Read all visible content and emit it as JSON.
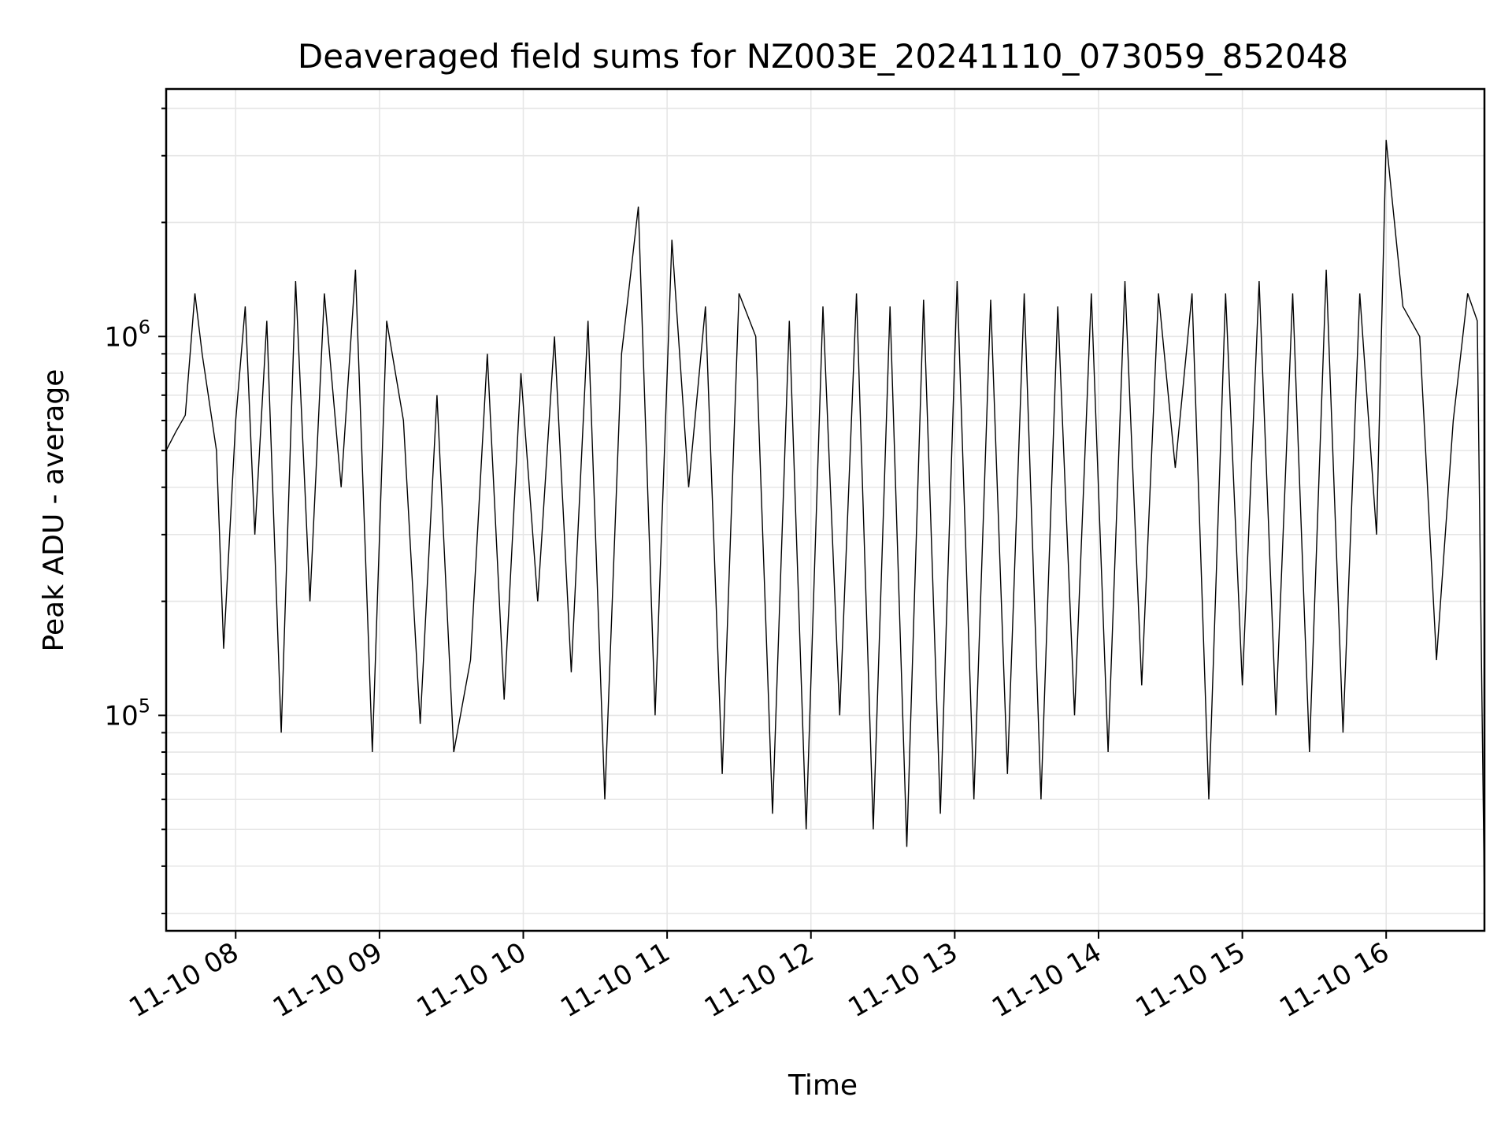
{
  "chart_data": {
    "type": "line",
    "title": "Deaveraged field sums for NZ003E_20241110_073059_852048",
    "xlabel": "Time",
    "ylabel": "Peak ADU - average",
    "x_axis": {
      "kind": "datetime",
      "range": [
        "2024-11-10 07:31",
        "2024-11-10 16:41"
      ],
      "ticks": [
        {
          "time": "2024-11-10 08:00",
          "label": "11-10 08"
        },
        {
          "time": "2024-11-10 09:00",
          "label": "11-10 09"
        },
        {
          "time": "2024-11-10 10:00",
          "label": "11-10 10"
        },
        {
          "time": "2024-11-10 11:00",
          "label": "11-10 11"
        },
        {
          "time": "2024-11-10 12:00",
          "label": "11-10 12"
        },
        {
          "time": "2024-11-10 13:00",
          "label": "11-10 13"
        },
        {
          "time": "2024-11-10 14:00",
          "label": "11-10 14"
        },
        {
          "time": "2024-11-10 15:00",
          "label": "11-10 15"
        },
        {
          "time": "2024-11-10 16:00",
          "label": "11-10 16"
        }
      ],
      "tick_label_rotation_deg": 30
    },
    "y_axis": {
      "scale": "log",
      "range": [
        27000,
        4500000
      ],
      "major_ticks": [
        {
          "value": 100000,
          "base": "10",
          "exponent": "5"
        },
        {
          "value": 1000000,
          "base": "10",
          "exponent": "6"
        }
      ]
    },
    "grid": true,
    "legend": "none",
    "line_color": "#000000",
    "grid_color": "#e6e6e6",
    "series": [
      {
        "x": [
          "2024-11-10 07:31",
          "2024-11-10 07:35",
          "2024-11-10 07:39",
          "2024-11-10 07:43",
          "2024-11-10 07:46",
          "2024-11-10 07:52",
          "2024-11-10 07:55",
          "2024-11-10 08:00",
          "2024-11-10 08:04",
          "2024-11-10 08:08",
          "2024-11-10 08:13",
          "2024-11-10 08:19",
          "2024-11-10 08:25",
          "2024-11-10 08:31",
          "2024-11-10 08:37",
          "2024-11-10 08:44",
          "2024-11-10 08:50",
          "2024-11-10 08:57",
          "2024-11-10 09:03",
          "2024-11-10 09:10",
          "2024-11-10 09:17",
          "2024-11-10 09:24",
          "2024-11-10 09:31",
          "2024-11-10 09:38",
          "2024-11-10 09:45",
          "2024-11-10 09:52",
          "2024-11-10 09:59",
          "2024-11-10 10:06",
          "2024-11-10 10:13",
          "2024-11-10 10:20",
          "2024-11-10 10:27",
          "2024-11-10 10:34",
          "2024-11-10 10:41",
          "2024-11-10 10:48",
          "2024-11-10 10:55",
          "2024-11-10 11:02",
          "2024-11-10 11:09",
          "2024-11-10 11:16",
          "2024-11-10 11:23",
          "2024-11-10 11:30",
          "2024-11-10 11:37",
          "2024-11-10 11:44",
          "2024-11-10 11:51",
          "2024-11-10 11:58",
          "2024-11-10 12:05",
          "2024-11-10 12:12",
          "2024-11-10 12:19",
          "2024-11-10 12:26",
          "2024-11-10 12:33",
          "2024-11-10 12:40",
          "2024-11-10 12:47",
          "2024-11-10 12:54",
          "2024-11-10 13:01",
          "2024-11-10 13:08",
          "2024-11-10 13:15",
          "2024-11-10 13:22",
          "2024-11-10 13:29",
          "2024-11-10 13:36",
          "2024-11-10 13:43",
          "2024-11-10 13:50",
          "2024-11-10 13:57",
          "2024-11-10 14:04",
          "2024-11-10 14:11",
          "2024-11-10 14:18",
          "2024-11-10 14:25",
          "2024-11-10 14:32",
          "2024-11-10 14:39",
          "2024-11-10 14:46",
          "2024-11-10 14:53",
          "2024-11-10 15:00",
          "2024-11-10 15:07",
          "2024-11-10 15:14",
          "2024-11-10 15:21",
          "2024-11-10 15:28",
          "2024-11-10 15:35",
          "2024-11-10 15:42",
          "2024-11-10 15:49",
          "2024-11-10 15:56",
          "2024-11-10 16:00",
          "2024-11-10 16:07",
          "2024-11-10 16:14",
          "2024-11-10 16:21",
          "2024-11-10 16:28",
          "2024-11-10 16:34",
          "2024-11-10 16:38",
          "2024-11-10 16:41"
        ],
        "y": [
          500000,
          560000,
          620000,
          1300000,
          900000,
          500000,
          150000,
          600000,
          1200000,
          300000,
          1100000,
          90000,
          1400000,
          200000,
          1300000,
          400000,
          1500000,
          80000,
          1100000,
          600000,
          95000,
          700000,
          80000,
          140000,
          900000,
          110000,
          800000,
          200000,
          1000000,
          130000,
          1100000,
          60000,
          900000,
          2200000,
          100000,
          1800000,
          400000,
          1200000,
          70000,
          1300000,
          1000000,
          55000,
          1100000,
          50000,
          1200000,
          100000,
          1300000,
          50000,
          1200000,
          45000,
          1250000,
          55000,
          1400000,
          60000,
          1250000,
          70000,
          1300000,
          60000,
          1200000,
          100000,
          1300000,
          80000,
          1400000,
          120000,
          1300000,
          450000,
          1300000,
          60000,
          1300000,
          120000,
          1400000,
          100000,
          1300000,
          80000,
          1500000,
          90000,
          1300000,
          300000,
          3300000,
          1200000,
          1000000,
          140000,
          600000,
          1300000,
          1100000,
          32000
        ]
      }
    ]
  }
}
